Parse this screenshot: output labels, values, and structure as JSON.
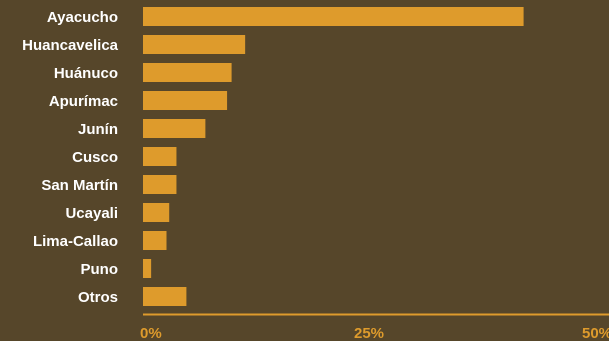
{
  "colors": {
    "background": "#56462a",
    "bar": "#de9b2c",
    "axis": "#de9b2c",
    "label_text": "#ffffff",
    "tick_text": "#de9b2c"
  },
  "chart_data": {
    "type": "bar",
    "orientation": "horizontal",
    "categories": [
      "Ayacucho",
      "Huancavelica",
      "Huánuco",
      "Apurímac",
      "Junín",
      "Cusco",
      "San Martín",
      "Ucayali",
      "Lima-Callao",
      "Puno",
      "Otros"
    ],
    "values": [
      42.1,
      11.3,
      9.8,
      9.3,
      6.9,
      3.7,
      3.7,
      2.9,
      2.6,
      0.9,
      4.8
    ],
    "xlim": [
      0,
      50
    ],
    "xticks": [
      0,
      25,
      50
    ],
    "xtick_labels": [
      "0%",
      "25%",
      "50%"
    ],
    "grid": false,
    "legend": "none",
    "title": "",
    "xlabel": "",
    "ylabel": ""
  }
}
